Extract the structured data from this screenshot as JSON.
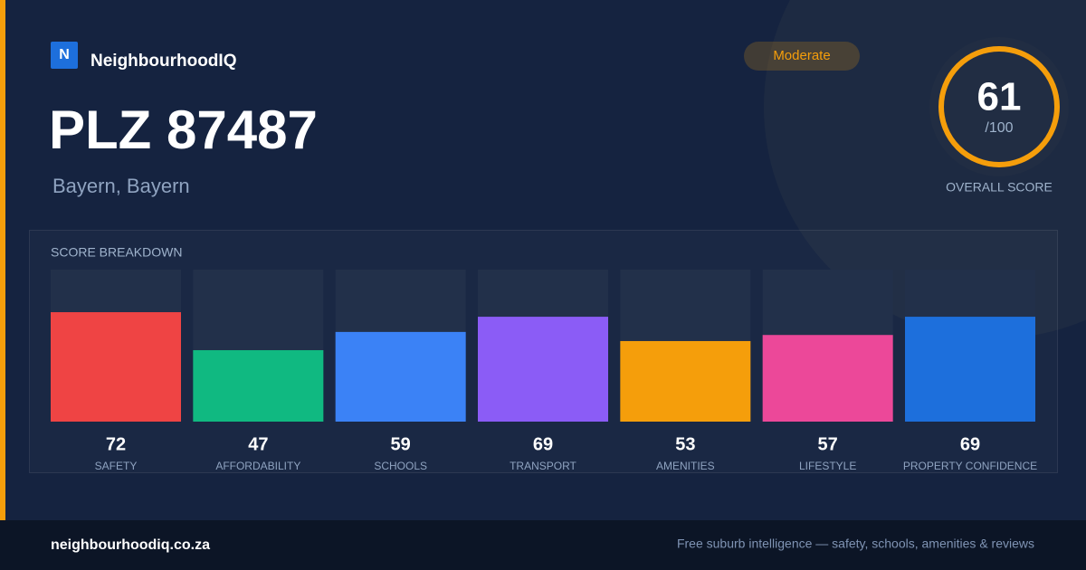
{
  "brand": {
    "logo": "N",
    "name": "NeighbourhoodIQ"
  },
  "badge": "Moderate",
  "title": "PLZ 87487",
  "subtitle": "Bayern, Bayern",
  "overall": {
    "score": 61,
    "out_of": "/100",
    "label": "OVERALL SCORE"
  },
  "breakdown": {
    "title": "SCORE BREAKDOWN",
    "ylim": [
      0,
      100
    ],
    "items": [
      {
        "label": "SAFETY",
        "value": 72,
        "color": "#ef4444"
      },
      {
        "label": "AFFORDABILITY",
        "value": 47,
        "color": "#10b981"
      },
      {
        "label": "SCHOOLS",
        "value": 59,
        "color": "#3b82f6"
      },
      {
        "label": "TRANSPORT",
        "value": 69,
        "color": "#8b5cf6"
      },
      {
        "label": "AMENITIES",
        "value": 53,
        "color": "#f59e0b"
      },
      {
        "label": "LIFESTYLE",
        "value": 57,
        "color": "#ec4899"
      },
      {
        "label": "PROPERTY CONFIDENCE",
        "value": 69,
        "color": "#1d6fdc"
      }
    ]
  },
  "footer": {
    "site": "neighbourhoodiq.co.za",
    "tagline": "Free suburb intelligence — safety, schools, amenities & reviews"
  }
}
